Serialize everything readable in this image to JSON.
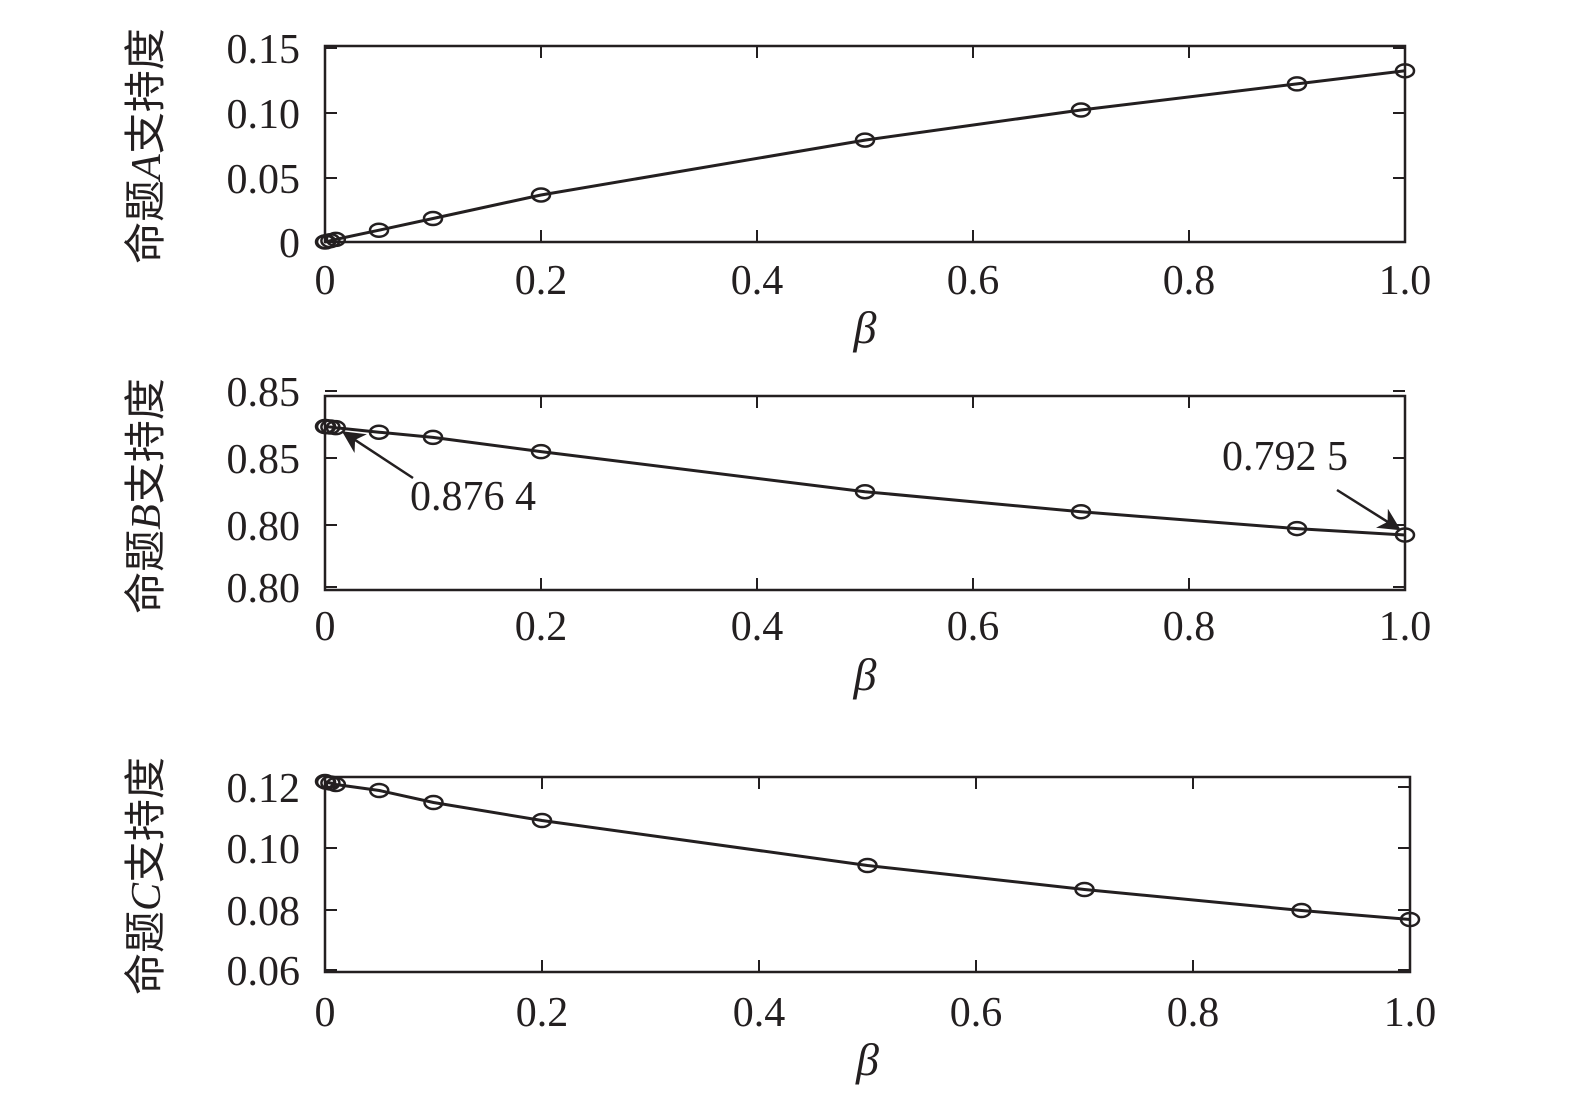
{
  "chart_data": [
    {
      "type": "line",
      "ylabel": {
        "prefix": "命题",
        "var": "A",
        "suffix": "支持度"
      },
      "xlabel": "β",
      "xlim": [
        0,
        1.0
      ],
      "ylim": [
        0,
        0.15
      ],
      "xticks": [
        "0",
        "0.2",
        "0.4",
        "0.6",
        "0.8",
        "1.0"
      ],
      "yticks": [
        "0",
        "0.05",
        "0.10",
        "0.15"
      ],
      "grid": false,
      "series": [
        {
          "marker": "circle",
          "x": [
            0,
            0.001,
            0.005,
            0.01,
            0.05,
            0.1,
            0.2,
            0.5,
            0.7,
            0.9,
            1.0
          ],
          "y": [
            0,
            0.0002,
            0.001,
            0.002,
            0.009,
            0.018,
            0.036,
            0.078,
            0.101,
            0.121,
            0.131
          ]
        }
      ],
      "annotations": []
    },
    {
      "type": "line",
      "ylabel": {
        "prefix": "命题",
        "var": "B",
        "suffix": "支持度"
      },
      "xlabel": "β",
      "xlim": [
        0,
        1.0
      ],
      "ylim": [
        0.75,
        0.9
      ],
      "xticks": [
        "0",
        "0.2",
        "0.4",
        "0.6",
        "0.8",
        "1.0"
      ],
      "yticks": [
        "0.80",
        "0.80",
        "0.85",
        "0.85"
      ],
      "grid": false,
      "series": [
        {
          "marker": "circle",
          "x": [
            0,
            0.001,
            0.005,
            0.01,
            0.05,
            0.1,
            0.2,
            0.5,
            0.7,
            0.9,
            1.0
          ],
          "y": [
            0.8764,
            0.8763,
            0.876,
            0.8755,
            0.872,
            0.868,
            0.857,
            0.826,
            0.8105,
            0.7975,
            0.7925
          ]
        }
      ],
      "annotations": [
        {
          "text": "0.876 4",
          "point": [
            0.01,
            0.8764
          ]
        },
        {
          "text": "0.792 5",
          "point": [
            1.0,
            0.7925
          ]
        }
      ]
    },
    {
      "type": "line",
      "ylabel": {
        "prefix": "命题",
        "var": "C",
        "suffix": "支持度"
      },
      "xlabel": "β",
      "xlim": [
        0,
        1.0
      ],
      "ylim": [
        0.06,
        0.125
      ],
      "xticks": [
        "0",
        "0.2",
        "0.4",
        "0.6",
        "0.8",
        "1.0"
      ],
      "yticks": [
        "0.06",
        "0.08",
        "0.10",
        "0.12"
      ],
      "grid": false,
      "series": [
        {
          "marker": "circle",
          "x": [
            0,
            0.001,
            0.005,
            0.01,
            0.05,
            0.1,
            0.2,
            0.5,
            0.7,
            0.9,
            1.0
          ],
          "y": [
            0.1235,
            0.1233,
            0.123,
            0.1225,
            0.1205,
            0.1165,
            0.1105,
            0.0955,
            0.0875,
            0.0805,
            0.0775
          ]
        }
      ],
      "annotations": []
    }
  ]
}
